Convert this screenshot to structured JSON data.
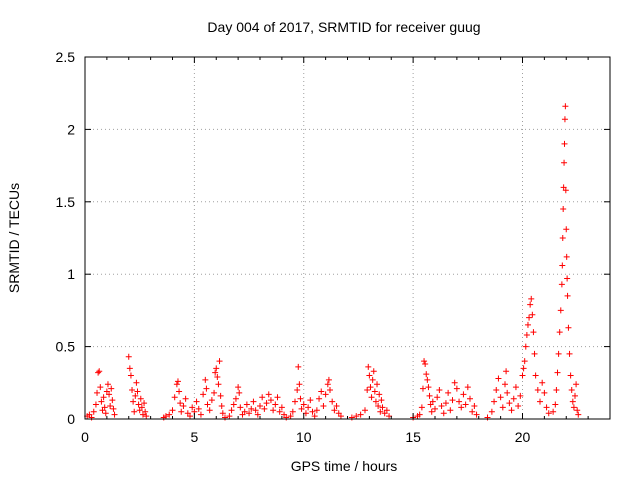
{
  "chart_data": {
    "type": "scatter",
    "title": "Day 004 of 2017, SRMTID for receiver guug",
    "xlabel": "GPS time / hours",
    "ylabel": "SRMTID / TECUs",
    "xlim": [
      0,
      24
    ],
    "ylim": [
      0,
      2.5
    ],
    "xticks": [
      0,
      5,
      10,
      15,
      20
    ],
    "yticks": [
      0,
      0.5,
      1,
      1.5,
      2,
      2.5
    ],
    "grid": true,
    "marker": "+",
    "color": "#ff0000",
    "series": [
      {
        "name": "SRMTID",
        "points": [
          [
            0.1,
            0.02
          ],
          [
            0.2,
            0.03
          ],
          [
            0.3,
            0.01
          ],
          [
            0.4,
            0.05
          ],
          [
            0.5,
            0.1
          ],
          [
            0.55,
            0.18
          ],
          [
            0.6,
            0.32
          ],
          [
            0.65,
            0.33
          ],
          [
            0.7,
            0.22
          ],
          [
            0.75,
            0.12
          ],
          [
            0.8,
            0.06
          ],
          [
            0.85,
            0.15
          ],
          [
            0.9,
            0.08
          ],
          [
            0.95,
            0.04
          ],
          [
            1.0,
            0.19
          ],
          [
            1.05,
            0.24
          ],
          [
            1.1,
            0.17
          ],
          [
            1.15,
            0.09
          ],
          [
            1.2,
            0.21
          ],
          [
            1.25,
            0.13
          ],
          [
            1.3,
            0.07
          ],
          [
            1.35,
            0.03
          ],
          [
            2.0,
            0.43
          ],
          [
            2.05,
            0.35
          ],
          [
            2.1,
            0.3
          ],
          [
            2.15,
            0.2
          ],
          [
            2.2,
            0.12
          ],
          [
            2.25,
            0.05
          ],
          [
            2.3,
            0.16
          ],
          [
            2.35,
            0.25
          ],
          [
            2.4,
            0.19
          ],
          [
            2.45,
            0.1
          ],
          [
            2.5,
            0.06
          ],
          [
            2.55,
            0.14
          ],
          [
            2.6,
            0.08
          ],
          [
            2.65,
            0.03
          ],
          [
            2.7,
            0.11
          ],
          [
            2.75,
            0.05
          ],
          [
            2.8,
            0.02
          ],
          [
            3.6,
            0.01
          ],
          [
            3.7,
            0.02
          ],
          [
            3.85,
            0.03
          ],
          [
            4.0,
            0.06
          ],
          [
            4.1,
            0.15
          ],
          [
            4.2,
            0.24
          ],
          [
            4.25,
            0.26
          ],
          [
            4.3,
            0.19
          ],
          [
            4.35,
            0.11
          ],
          [
            4.4,
            0.05
          ],
          [
            4.5,
            0.09
          ],
          [
            4.6,
            0.14
          ],
          [
            4.7,
            0.04
          ],
          [
            4.8,
            0.02
          ],
          [
            4.9,
            0.08
          ],
          [
            5.0,
            0.05
          ],
          [
            5.1,
            0.12
          ],
          [
            5.2,
            0.07
          ],
          [
            5.3,
            0.03
          ],
          [
            5.4,
            0.17
          ],
          [
            5.5,
            0.27
          ],
          [
            5.55,
            0.21
          ],
          [
            5.6,
            0.1
          ],
          [
            5.7,
            0.06
          ],
          [
            5.8,
            0.13
          ],
          [
            5.9,
            0.18
          ],
          [
            5.95,
            0.32
          ],
          [
            6.0,
            0.35
          ],
          [
            6.05,
            0.29
          ],
          [
            6.1,
            0.24
          ],
          [
            6.15,
            0.4
          ],
          [
            6.2,
            0.16
          ],
          [
            6.25,
            0.09
          ],
          [
            6.3,
            0.04
          ],
          [
            6.4,
            0.01
          ],
          [
            6.6,
            0.02
          ],
          [
            6.7,
            0.06
          ],
          [
            6.8,
            0.1
          ],
          [
            6.9,
            0.14
          ],
          [
            7.0,
            0.22
          ],
          [
            7.05,
            0.18
          ],
          [
            7.1,
            0.08
          ],
          [
            7.2,
            0.03
          ],
          [
            7.3,
            0.05
          ],
          [
            7.4,
            0.1
          ],
          [
            7.5,
            0.04
          ],
          [
            7.6,
            0.07
          ],
          [
            7.7,
            0.12
          ],
          [
            7.8,
            0.06
          ],
          [
            7.9,
            0.03
          ],
          [
            8.0,
            0.09
          ],
          [
            8.1,
            0.15
          ],
          [
            8.2,
            0.07
          ],
          [
            8.3,
            0.11
          ],
          [
            8.4,
            0.17
          ],
          [
            8.5,
            0.13
          ],
          [
            8.6,
            0.06
          ],
          [
            8.7,
            0.1
          ],
          [
            8.8,
            0.15
          ],
          [
            8.9,
            0.05
          ],
          [
            9.0,
            0.08
          ],
          [
            9.1,
            0.03
          ],
          [
            9.2,
            0.01
          ],
          [
            9.4,
            0.02
          ],
          [
            9.5,
            0.05
          ],
          [
            9.6,
            0.12
          ],
          [
            9.7,
            0.2
          ],
          [
            9.75,
            0.36
          ],
          [
            9.8,
            0.24
          ],
          [
            9.85,
            0.14
          ],
          [
            9.9,
            0.07
          ],
          [
            10.0,
            0.1
          ],
          [
            10.1,
            0.04
          ],
          [
            10.2,
            0.08
          ],
          [
            10.3,
            0.13
          ],
          [
            10.4,
            0.05
          ],
          [
            10.5,
            0.02
          ],
          [
            10.6,
            0.06
          ],
          [
            10.7,
            0.14
          ],
          [
            10.8,
            0.19
          ],
          [
            10.9,
            0.09
          ],
          [
            11.0,
            0.17
          ],
          [
            11.1,
            0.24
          ],
          [
            11.15,
            0.27
          ],
          [
            11.2,
            0.2
          ],
          [
            11.3,
            0.12
          ],
          [
            11.4,
            0.06
          ],
          [
            11.5,
            0.09
          ],
          [
            11.6,
            0.04
          ],
          [
            11.7,
            0.02
          ],
          [
            12.2,
            0.01
          ],
          [
            12.4,
            0.02
          ],
          [
            12.6,
            0.03
          ],
          [
            12.8,
            0.06
          ],
          [
            12.9,
            0.2
          ],
          [
            12.95,
            0.36
          ],
          [
            13.0,
            0.3
          ],
          [
            13.05,
            0.22
          ],
          [
            13.1,
            0.15
          ],
          [
            13.15,
            0.27
          ],
          [
            13.2,
            0.33
          ],
          [
            13.25,
            0.19
          ],
          [
            13.3,
            0.12
          ],
          [
            13.35,
            0.24
          ],
          [
            13.4,
            0.09
          ],
          [
            13.45,
            0.17
          ],
          [
            13.5,
            0.05
          ],
          [
            13.55,
            0.13
          ],
          [
            13.6,
            0.08
          ],
          [
            13.7,
            0.04
          ],
          [
            13.8,
            0.06
          ],
          [
            13.9,
            0.02
          ],
          [
            15.0,
            0.01
          ],
          [
            15.2,
            0.02
          ],
          [
            15.3,
            0.03
          ],
          [
            15.4,
            0.08
          ],
          [
            15.45,
            0.21
          ],
          [
            15.5,
            0.4
          ],
          [
            15.55,
            0.38
          ],
          [
            15.6,
            0.31
          ],
          [
            15.65,
            0.27
          ],
          [
            15.7,
            0.22
          ],
          [
            15.75,
            0.16
          ],
          [
            15.8,
            0.1
          ],
          [
            15.85,
            0.05
          ],
          [
            15.9,
            0.12
          ],
          [
            16.0,
            0.07
          ],
          [
            16.1,
            0.15
          ],
          [
            16.2,
            0.2
          ],
          [
            16.3,
            0.09
          ],
          [
            16.4,
            0.04
          ],
          [
            16.5,
            0.11
          ],
          [
            16.6,
            0.18
          ],
          [
            16.7,
            0.06
          ],
          [
            16.8,
            0.13
          ],
          [
            16.9,
            0.25
          ],
          [
            17.0,
            0.21
          ],
          [
            17.1,
            0.12
          ],
          [
            17.2,
            0.08
          ],
          [
            17.3,
            0.17
          ],
          [
            17.4,
            0.1
          ],
          [
            17.5,
            0.22
          ],
          [
            17.6,
            0.14
          ],
          [
            17.7,
            0.05
          ],
          [
            17.8,
            0.09
          ],
          [
            17.9,
            0.03
          ],
          [
            18.4,
            0.01
          ],
          [
            18.6,
            0.05
          ],
          [
            18.7,
            0.12
          ],
          [
            18.8,
            0.2
          ],
          [
            18.9,
            0.28
          ],
          [
            19.0,
            0.15
          ],
          [
            19.1,
            0.08
          ],
          [
            19.2,
            0.24
          ],
          [
            19.25,
            0.33
          ],
          [
            19.3,
            0.18
          ],
          [
            19.4,
            0.11
          ],
          [
            19.5,
            0.06
          ],
          [
            19.6,
            0.14
          ],
          [
            19.7,
            0.22
          ],
          [
            19.8,
            0.09
          ],
          [
            19.9,
            0.16
          ],
          [
            20.0,
            0.3
          ],
          [
            20.05,
            0.35
          ],
          [
            20.1,
            0.4
          ],
          [
            20.15,
            0.5
          ],
          [
            20.2,
            0.58
          ],
          [
            20.25,
            0.65
          ],
          [
            20.3,
            0.7
          ],
          [
            20.35,
            0.79
          ],
          [
            20.4,
            0.83
          ],
          [
            20.45,
            0.72
          ],
          [
            20.5,
            0.6
          ],
          [
            20.55,
            0.45
          ],
          [
            20.6,
            0.3
          ],
          [
            20.7,
            0.2
          ],
          [
            20.8,
            0.12
          ],
          [
            20.9,
            0.25
          ],
          [
            21.0,
            0.18
          ],
          [
            21.1,
            0.08
          ],
          [
            21.2,
            0.04
          ],
          [
            21.4,
            0.05
          ],
          [
            21.5,
            0.1
          ],
          [
            21.55,
            0.2
          ],
          [
            21.6,
            0.32
          ],
          [
            21.65,
            0.45
          ],
          [
            21.7,
            0.6
          ],
          [
            21.75,
            0.75
          ],
          [
            21.8,
            0.93
          ],
          [
            21.82,
            1.06
          ],
          [
            21.84,
            1.25
          ],
          [
            21.86,
            1.45
          ],
          [
            21.88,
            1.6
          ],
          [
            21.9,
            1.77
          ],
          [
            21.92,
            1.9
          ],
          [
            21.94,
            2.07
          ],
          [
            21.96,
            2.16
          ],
          [
            21.98,
            1.58
          ],
          [
            22.0,
            1.31
          ],
          [
            22.02,
            1.12
          ],
          [
            22.04,
            0.97
          ],
          [
            22.06,
            0.85
          ],
          [
            22.1,
            0.63
          ],
          [
            22.15,
            0.45
          ],
          [
            22.2,
            0.3
          ],
          [
            22.25,
            0.2
          ],
          [
            22.3,
            0.12
          ],
          [
            22.35,
            0.08
          ],
          [
            22.4,
            0.16
          ],
          [
            22.45,
            0.24
          ],
          [
            22.5,
            0.06
          ],
          [
            22.55,
            0.03
          ]
        ]
      }
    ]
  }
}
